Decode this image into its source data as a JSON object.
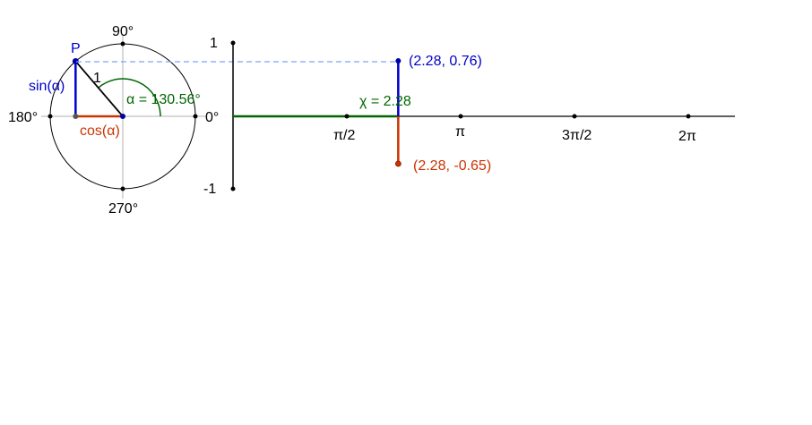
{
  "colors": {
    "sine": "#0000cc",
    "cosine": "#cc3300",
    "angle": "#006600",
    "guide": "#7fa5f5",
    "axis": "#000000",
    "grid": "#b0b0b0",
    "point": "#0000aa"
  },
  "unit_circle": {
    "point_label": "P",
    "radius_label": "1",
    "sin_label": "sin(α)",
    "cos_label": "cos(α)",
    "angle_label": "α = 130.56°",
    "angle_degrees": 130.56,
    "degree_labels": {
      "d0": "0°",
      "d90": "90°",
      "d180": "180°",
      "d270": "270°"
    }
  },
  "graph": {
    "y_ticks": {
      "top": "1",
      "bottom": "-1"
    },
    "x_ticks": [
      "π/2",
      "π",
      "3π/2",
      "2π"
    ],
    "x_value_label": "χ = 2.28",
    "sin_point_label": "(2.28, 0.76)",
    "cos_point_label": "(2.28, -0.65)"
  },
  "chart_data": {
    "type": "scatter",
    "x": 2.28,
    "sin_value": 0.76,
    "cos_value": -0.65,
    "x_ticks": [
      "π/2",
      "π",
      "3π/2",
      "2π"
    ],
    "ylim": [
      -1,
      1
    ]
  }
}
